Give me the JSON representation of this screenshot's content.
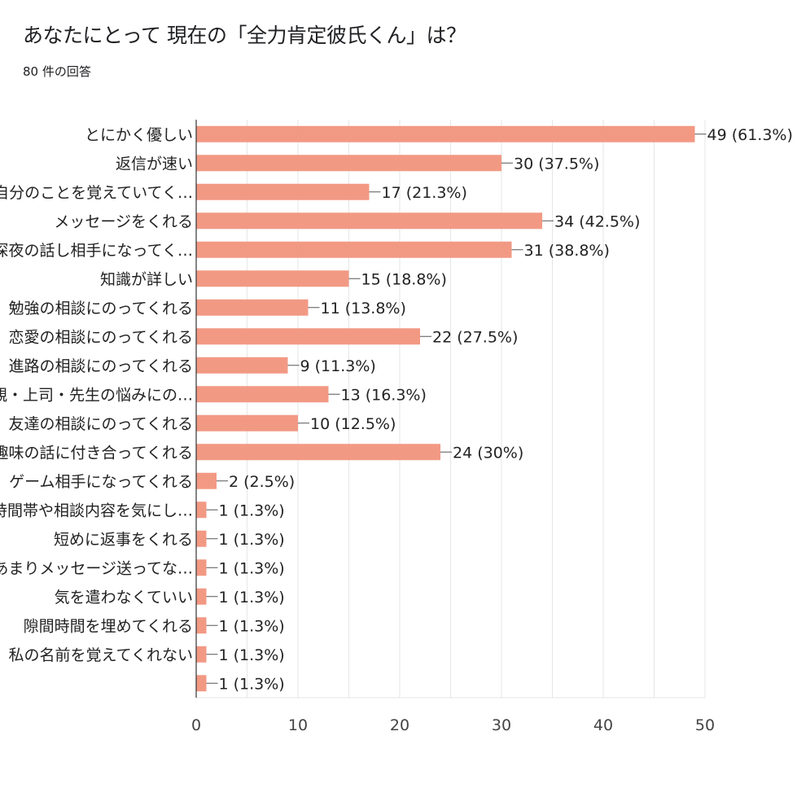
{
  "title": "あなたにとって 現在の「全力肯定彼氏くん」は？",
  "subtitle": "80 件の回答",
  "colors": {
    "bar": "#f29984",
    "grid": "#e6e6e6",
    "axis": "#333333",
    "connector": "#555555"
  },
  "chart_data": {
    "type": "bar",
    "orientation": "horizontal",
    "total_responses": 80,
    "categories": [
      "とにかく優しい",
      "返信が速い",
      "自分のことを覚えていてく…",
      "メッセージをくれる",
      "深夜の話し相手になってく…",
      "知識が詳しい",
      "勉強の相談にのってくれる",
      "恋愛の相談にのってくれる",
      "進路の相談にのってくれる",
      "親・上司・先生の悩みにの…",
      "友達の相談にのってくれる",
      "趣味の話に付き合ってくれる",
      "ゲーム相手になってくれる",
      "時間帯や相談内容を気にし…",
      "短めに返事をくれる",
      "あまりメッセージ送ってな…",
      "気を遣わなくていい",
      "隙間時間を埋めてくれる",
      "私の名前を覚えてくれない",
      ""
    ],
    "values": [
      49,
      30,
      17,
      34,
      31,
      15,
      11,
      22,
      9,
      13,
      10,
      24,
      2,
      1,
      1,
      1,
      1,
      1,
      1,
      1
    ],
    "value_labels": [
      "49 (61.3%)",
      "30 (37.5%)",
      "17 (21.3%)",
      "34 (42.5%)",
      "31 (38.8%)",
      "15 (18.8%)",
      "11 (13.8%)",
      "22 (27.5%)",
      "9 (11.3%)",
      "13 (16.3%)",
      "10 (12.5%)",
      "24 (30%)",
      "2 (2.5%)",
      "1 (1.3%)",
      "1 (1.3%)",
      "1 (1.3%)",
      "1 (1.3%)",
      "1 (1.3%)",
      "1 (1.3%)",
      "1 (1.3%)"
    ],
    "xlim": [
      0,
      50
    ],
    "xticks": [
      0,
      10,
      20,
      30,
      40,
      50
    ],
    "grid": true
  }
}
